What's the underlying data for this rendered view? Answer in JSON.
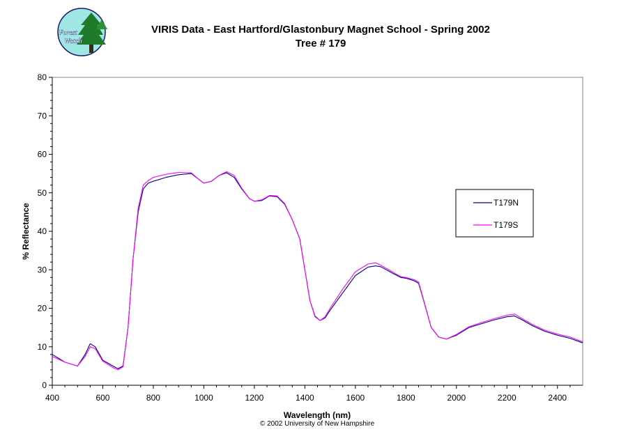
{
  "logo": {
    "line1": "Forest",
    "line2": "Watch"
  },
  "chart_data": {
    "type": "line",
    "title": "VIRIS Data - East Hartford/Glastonbury Magnet School - Spring 2002",
    "subtitle": "Tree # 179",
    "xlabel": "Wavelength (nm)",
    "ylabel": "% Reflectance",
    "footer": "© 2002 University of New Hampshire",
    "xlim": [
      400,
      2500
    ],
    "ylim": [
      0,
      80
    ],
    "xticks": [
      400,
      600,
      800,
      1000,
      1200,
      1400,
      1600,
      1800,
      2000,
      2200,
      2400
    ],
    "yticks": [
      0,
      10,
      20,
      30,
      40,
      50,
      60,
      70,
      80
    ],
    "grid": false,
    "legend_position": "right",
    "series": [
      {
        "name": "T179N",
        "color": "#000080",
        "x": [
          400,
          450,
          500,
          530,
          550,
          570,
          600,
          640,
          660,
          680,
          700,
          720,
          740,
          760,
          780,
          800,
          850,
          900,
          950,
          980,
          1000,
          1030,
          1060,
          1090,
          1120,
          1150,
          1180,
          1200,
          1230,
          1260,
          1290,
          1320,
          1350,
          1380,
          1400,
          1420,
          1440,
          1460,
          1480,
          1500,
          1550,
          1600,
          1650,
          1680,
          1700,
          1750,
          1780,
          1800,
          1830,
          1850,
          1870,
          1900,
          1930,
          1960,
          2000,
          2050,
          2100,
          2150,
          2200,
          2230,
          2260,
          2300,
          2350,
          2400,
          2450,
          2500
        ],
        "y": [
          8,
          6,
          5,
          8,
          10.8,
          10,
          6.5,
          5,
          4.3,
          5,
          15,
          33,
          45,
          51,
          52.5,
          53,
          54,
          54.7,
          55,
          53.5,
          52.5,
          53,
          54.5,
          55.2,
          54,
          51,
          48.5,
          47.8,
          48,
          49.2,
          49,
          47,
          43,
          38,
          30,
          22,
          18,
          16.8,
          17.5,
          19.5,
          24,
          28.5,
          30.7,
          31,
          30.8,
          29,
          28,
          27.8,
          27.2,
          26.5,
          22,
          15,
          12.5,
          12,
          13,
          15,
          16,
          17,
          17.8,
          18,
          17,
          15.5,
          14,
          13,
          12.2,
          11
        ]
      },
      {
        "name": "T179S",
        "color": "#ff00ff",
        "x": [
          400,
          450,
          500,
          530,
          550,
          570,
          600,
          640,
          660,
          680,
          700,
          720,
          740,
          760,
          780,
          800,
          850,
          900,
          950,
          980,
          1000,
          1030,
          1060,
          1090,
          1120,
          1150,
          1180,
          1200,
          1230,
          1260,
          1290,
          1320,
          1350,
          1380,
          1400,
          1420,
          1440,
          1460,
          1480,
          1500,
          1550,
          1600,
          1650,
          1680,
          1700,
          1750,
          1780,
          1800,
          1830,
          1850,
          1870,
          1900,
          1930,
          1960,
          2000,
          2050,
          2100,
          2150,
          2200,
          2230,
          2260,
          2300,
          2350,
          2400,
          2450,
          2500
        ],
        "y": [
          7.5,
          6,
          5,
          7.5,
          10,
          9.5,
          6.2,
          4.6,
          4,
          4.8,
          15,
          33,
          46,
          52,
          53.2,
          54,
          54.8,
          55.3,
          55.2,
          53.5,
          52.5,
          53,
          54.5,
          55.5,
          54.5,
          51.2,
          48.5,
          47.8,
          48.2,
          49.3,
          49.2,
          47.2,
          43,
          38,
          30,
          22,
          17.8,
          16.8,
          17.8,
          20,
          25,
          29.5,
          31.5,
          31.8,
          31.2,
          29.3,
          28.2,
          28,
          27.5,
          26.8,
          22.2,
          15,
          12.5,
          12,
          13.2,
          15.2,
          16.3,
          17.3,
          18.2,
          18.5,
          17.3,
          15.8,
          14.3,
          13.3,
          12.5,
          11.3
        ]
      }
    ]
  }
}
